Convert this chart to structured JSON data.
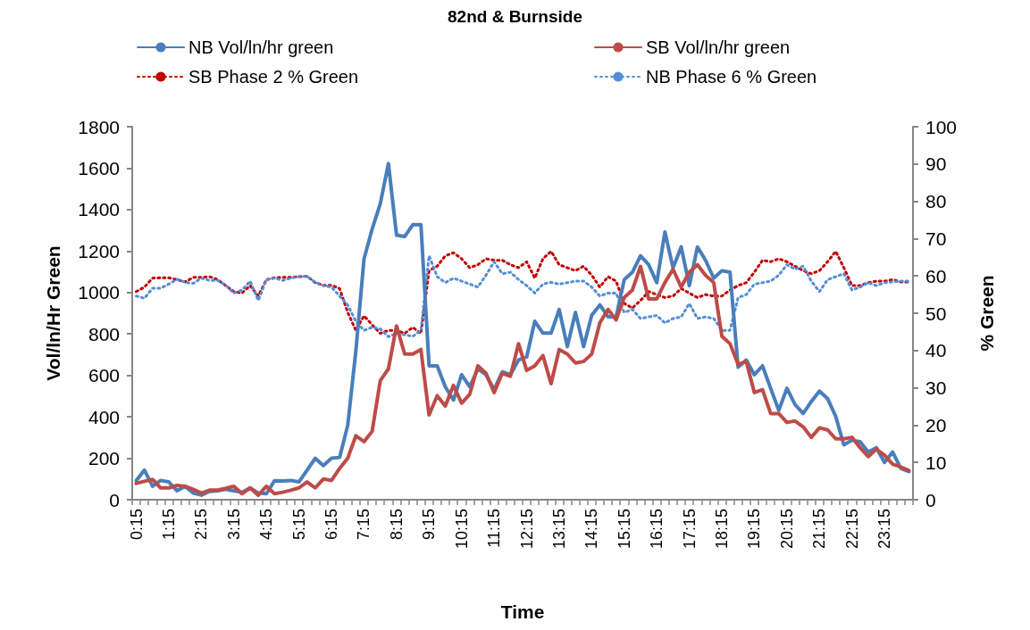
{
  "chart_data": {
    "type": "line",
    "title": "82nd & Burnside",
    "xlabel": "Time",
    "ylabel": "Vol/ln/Hr Green",
    "y2label": "% Green",
    "categories": [
      "0:15",
      null,
      null,
      null,
      "1:15",
      null,
      null,
      null,
      "2:15",
      null,
      null,
      null,
      "3:15",
      null,
      null,
      null,
      "4:15",
      null,
      null,
      null,
      "5:15",
      null,
      null,
      null,
      "6:15",
      null,
      null,
      null,
      "7:15",
      null,
      null,
      null,
      "8:15",
      null,
      null,
      null,
      "9:15",
      null,
      null,
      null,
      "10:15",
      null,
      null,
      null,
      "11:15",
      null,
      null,
      null,
      "12:15",
      null,
      null,
      null,
      "13:15",
      null,
      null,
      null,
      "14:15",
      null,
      null,
      null,
      "15:15",
      null,
      null,
      null,
      "16:15",
      null,
      null,
      null,
      "17:15",
      null,
      null,
      null,
      "18:15",
      null,
      null,
      null,
      "19:15",
      null,
      null,
      null,
      "20:15",
      null,
      null,
      null,
      "21:15",
      null,
      null,
      null,
      "22:15",
      null,
      null,
      null,
      "23:15",
      null,
      null,
      null
    ],
    "ylim": [
      0,
      1800
    ],
    "yticks": [
      0,
      200,
      400,
      600,
      800,
      1000,
      1200,
      1400,
      1600,
      1800
    ],
    "y2lim": [
      0,
      100
    ],
    "y2ticks": [
      0,
      10,
      20,
      30,
      40,
      50,
      60,
      70,
      80,
      90,
      100
    ],
    "grid": false,
    "legend": "top",
    "marker": "none",
    "series": [
      {
        "name": "NB Vol/ln/hr green",
        "color": "#4a7ebb",
        "line_style": "solid",
        "values": [
          93,
          143,
          65,
          93,
          86,
          43,
          65,
          32,
          22,
          40,
          43,
          50,
          43,
          36,
          57,
          32,
          29,
          92,
          90,
          93,
          86,
          143,
          200,
          165,
          200,
          204,
          359,
          718,
          1162,
          1306,
          1428,
          1622,
          1277,
          1270,
          1327,
          1327,
          646,
          646,
          545,
          481,
          603,
          545,
          631,
          603,
          531,
          617,
          603,
          674,
          689,
          861,
          804,
          804,
          918,
          739,
          904,
          739,
          890,
          940,
          883,
          883,
          1062,
          1098,
          1177,
          1134,
          1048,
          1292,
          1119,
          1220,
          1033,
          1220,
          1155,
          1069,
          1105,
          1098,
          639,
          674,
          603,
          646,
          538,
          431,
          538,
          459,
          416,
          474,
          524,
          488,
          402,
          265,
          287,
          280,
          230,
          251,
          180,
          230,
          151,
          136
        ]
      },
      {
        "name": "SB Vol/ln/hr green",
        "color": "#be4b48",
        "line_style": "solid",
        "values": [
          79,
          89,
          98,
          57,
          57,
          69,
          65,
          50,
          32,
          46,
          46,
          55,
          65,
          29,
          57,
          22,
          65,
          29,
          36,
          46,
          57,
          86,
          57,
          100,
          93,
          151,
          200,
          309,
          280,
          330,
          574,
          631,
          839,
          703,
          703,
          725,
          409,
          502,
          452,
          552,
          466,
          509,
          646,
          610,
          517,
          610,
          596,
          753,
          624,
          646,
          696,
          560,
          725,
          703,
          660,
          667,
          703,
          854,
          918,
          868,
          976,
          1012,
          1126,
          969,
          969,
          1048,
          1112,
          1026,
          1098,
          1134,
          1083,
          1048,
          789,
          753,
          653,
          667,
          517,
          531,
          416,
          416,
          373,
          380,
          352,
          301,
          347,
          337,
          294,
          294,
          301,
          251,
          208,
          244,
          215,
          172,
          158,
          141
        ]
      },
      {
        "name": "SB Phase 2 % Green",
        "color": "#c00000",
        "line_style": "dotted",
        "axis": "y2",
        "values": [
          55.8,
          57.0,
          59.4,
          59.5,
          59.5,
          59.0,
          58.4,
          59.6,
          59.6,
          59.8,
          59.0,
          57.4,
          55.8,
          55.4,
          57.4,
          54.6,
          59.0,
          59.5,
          59.6,
          59.6,
          59.8,
          59.9,
          58.2,
          57.5,
          57.5,
          56.6,
          50.2,
          45.4,
          49.3,
          46.9,
          44.6,
          45.4,
          45.4,
          44.6,
          46.2,
          44.6,
          61.4,
          62.6,
          65.4,
          66.2,
          64.6,
          62.2,
          63.0,
          64.6,
          64.2,
          64.2,
          63.0,
          62.2,
          63.8,
          59.4,
          64.6,
          66.6,
          63.0,
          62.2,
          61.4,
          62.6,
          60.2,
          57.0,
          59.8,
          58.6,
          52.6,
          51.4,
          53.4,
          55.8,
          55.0,
          54.2,
          54.6,
          56.6,
          55.4,
          54.2,
          55.0,
          54.6,
          54.6,
          56.2,
          57.4,
          58.2,
          61.0,
          64.2,
          63.8,
          64.6,
          63.8,
          62.6,
          61.4,
          60.6,
          61.4,
          63.8,
          66.6,
          62.2,
          57.4,
          57.4,
          58.2,
          58.6,
          58.6,
          59.0,
          58.4,
          58.4
        ]
      },
      {
        "name": "NB Phase 6 % Green",
        "color": "#558ed5",
        "line_style": "dotted",
        "axis": "y2",
        "values": [
          54.6,
          54.0,
          56.7,
          56.7,
          57.8,
          59.1,
          58.3,
          58.0,
          59.4,
          58.8,
          58.8,
          57.5,
          55.4,
          56.2,
          58.6,
          53.4,
          59.0,
          59.4,
          58.8,
          59.4,
          59.8,
          59.9,
          58.3,
          57.4,
          57.0,
          54.6,
          52.2,
          47.8,
          45.4,
          46.2,
          45.8,
          43.7,
          44.6,
          44.2,
          43.8,
          45.4,
          65.4,
          59.8,
          58.2,
          59.4,
          58.6,
          57.8,
          57.0,
          60.2,
          63.8,
          60.6,
          61.0,
          59.0,
          57.4,
          55.4,
          57.8,
          58.3,
          57.8,
          58.2,
          58.6,
          58.6,
          57.0,
          54.6,
          55.4,
          55.4,
          50.2,
          51.0,
          48.6,
          49.0,
          49.4,
          47.4,
          48.6,
          49.0,
          52.6,
          48.6,
          49.0,
          48.6,
          45.4,
          45.4,
          54.2,
          55.0,
          57.8,
          58.2,
          58.6,
          60.2,
          63.0,
          61.8,
          62.6,
          58.6,
          55.8,
          59.0,
          59.8,
          60.6,
          56.2,
          57.0,
          58.2,
          57.4,
          58.2,
          58.4,
          58.6,
          58.6
        ]
      }
    ]
  }
}
